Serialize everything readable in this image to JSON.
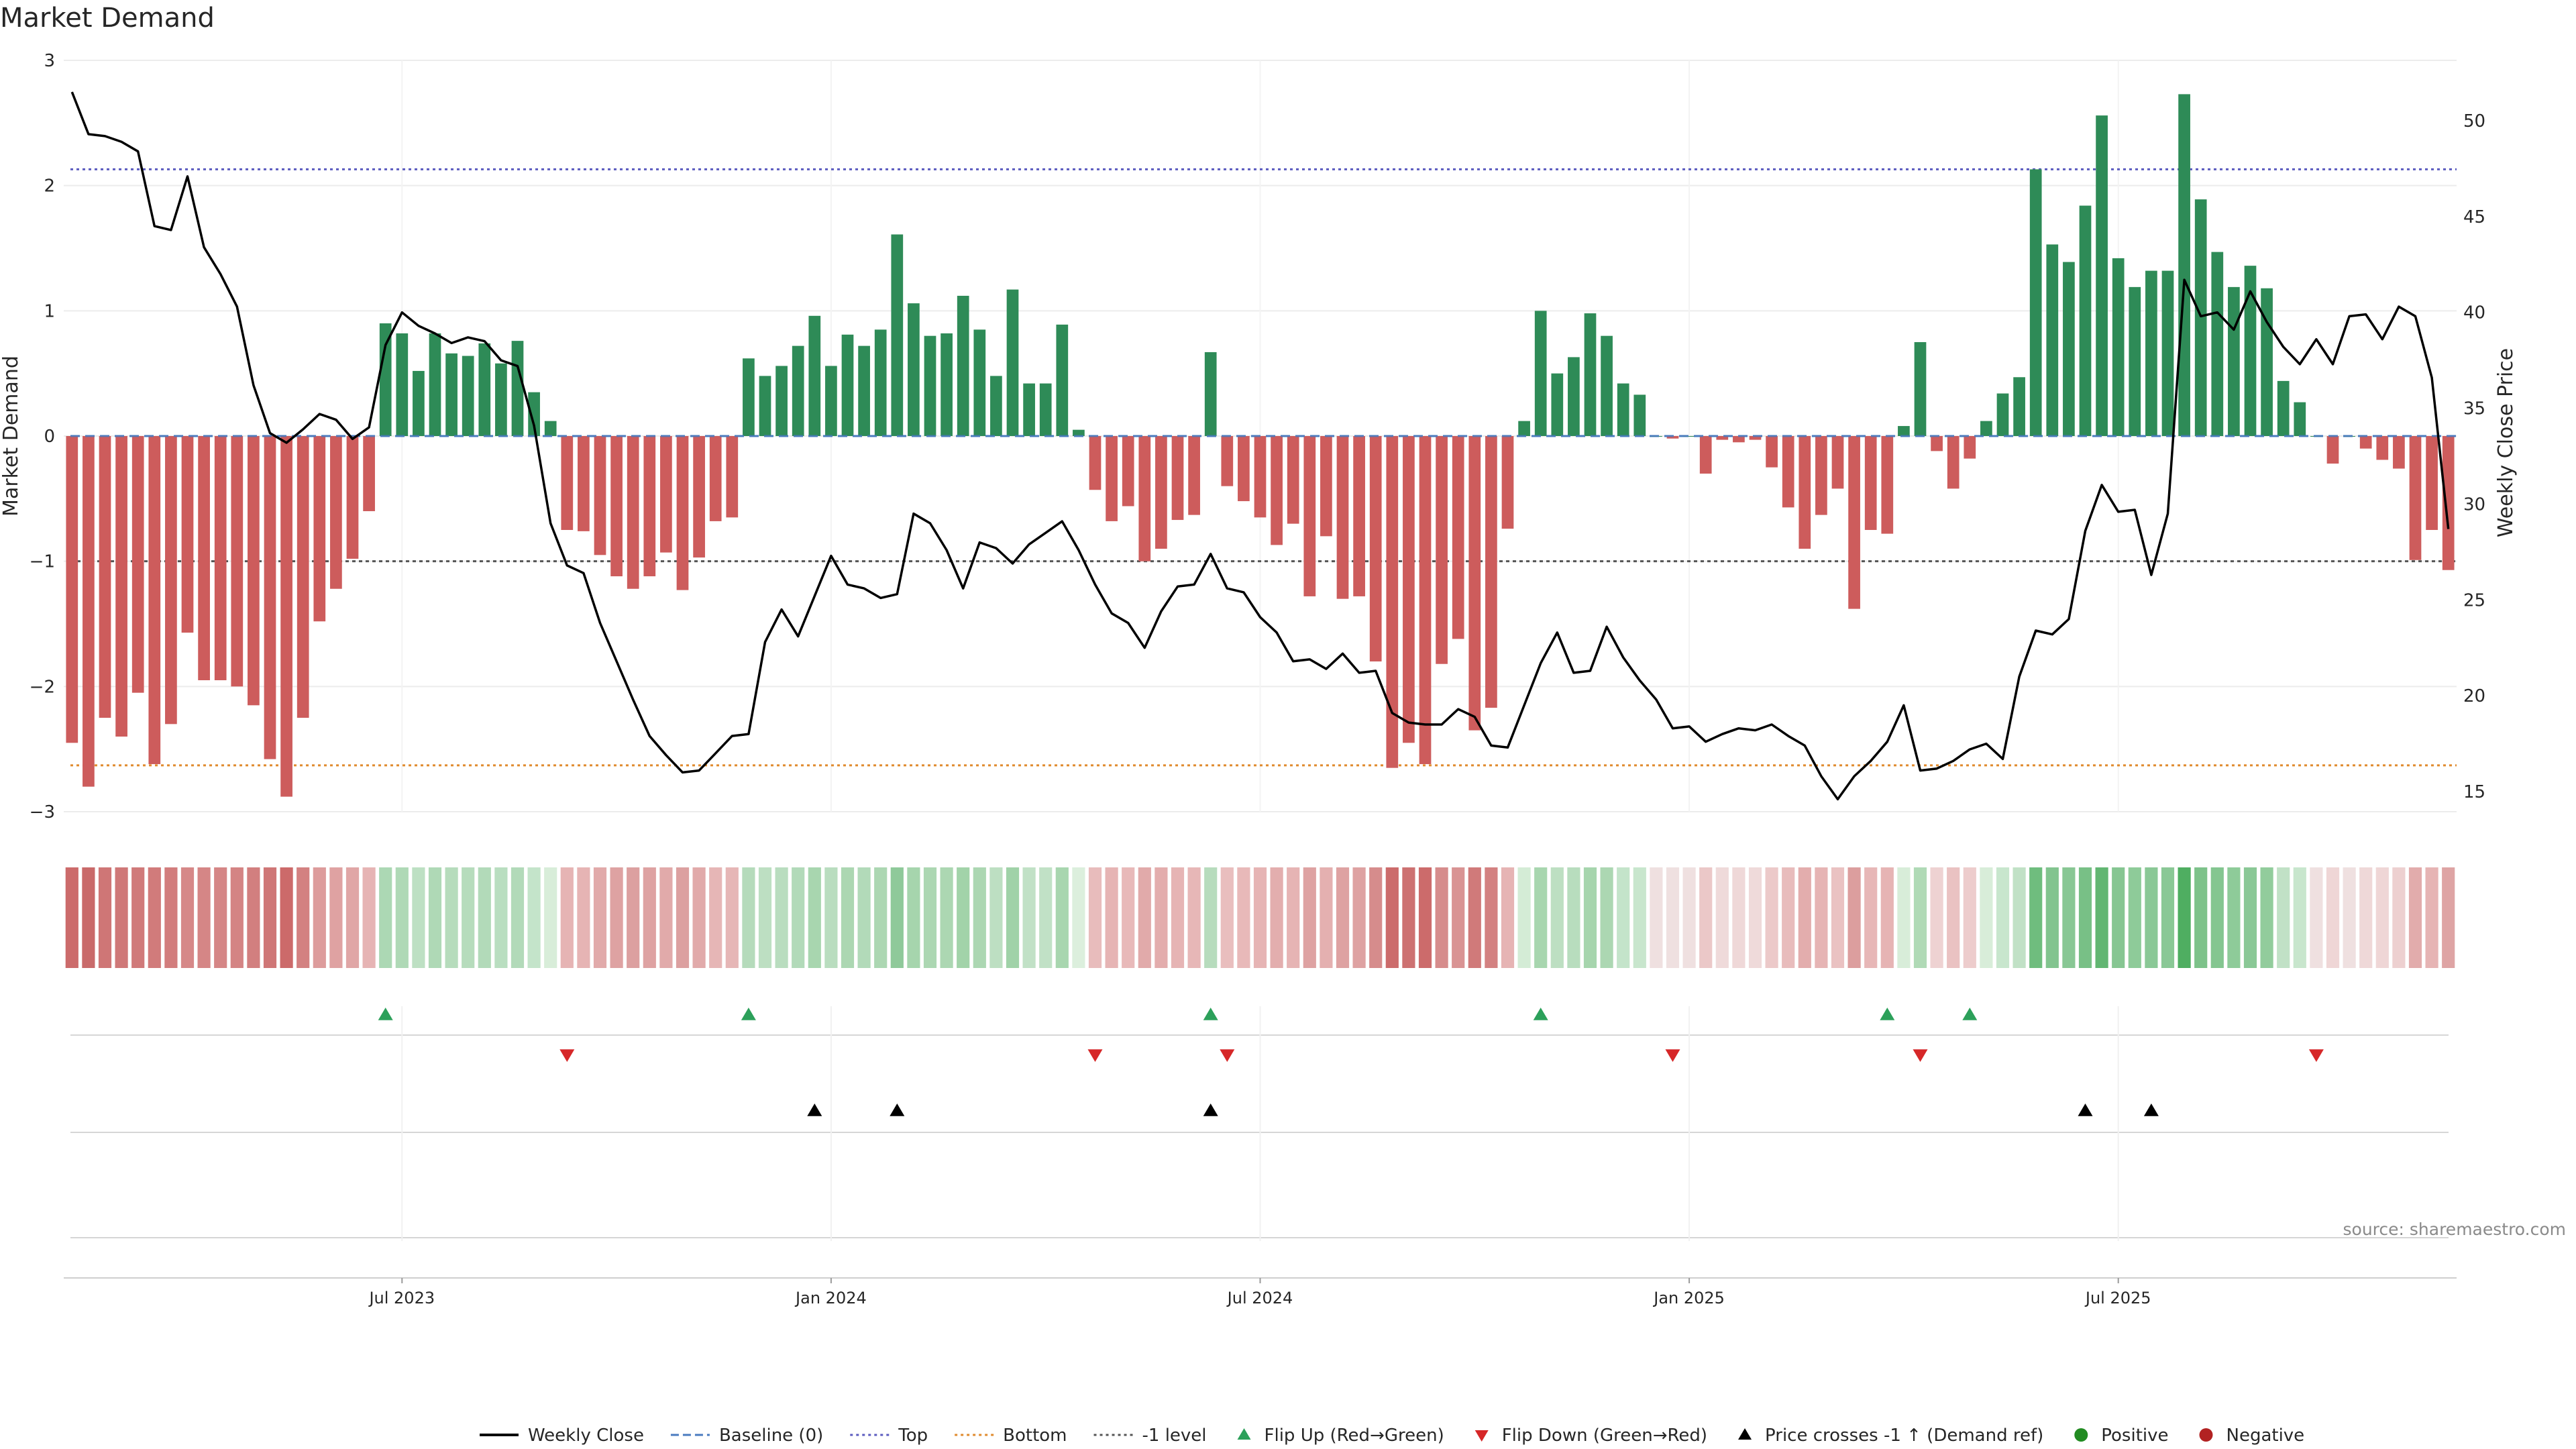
{
  "chart_data": {
    "type": "bar",
    "title": "Market Demand",
    "ylabel": "Market Demand",
    "y2label": "Weekly Close Price",
    "ylim": [
      -3,
      3
    ],
    "y2lim": [
      14,
      53
    ],
    "yticks": [
      3,
      2,
      1,
      0,
      -1,
      -2,
      -3
    ],
    "yticklabels": [
      "3",
      "2",
      "1",
      "0",
      "−1",
      "−2",
      "−3"
    ],
    "y2ticks": [
      50,
      45,
      40,
      35,
      30,
      25,
      20,
      15
    ],
    "y2ticklabels": [
      "50",
      "45",
      "40",
      "35",
      "30",
      "25",
      "20",
      "15"
    ],
    "xticks": [
      20,
      46,
      72,
      98,
      124
    ],
    "xticklabels": [
      "Jul 2023",
      "Jan 2024",
      "Jul 2024",
      "Jan 2025",
      "Jul 2025"
    ],
    "reference_lines": {
      "top": 2.13,
      "bottom": -2.63,
      "minus_one": -1,
      "baseline": 0
    },
    "series": [
      {
        "name": "Market Demand",
        "values": [
          -2.45,
          -2.8,
          -2.25,
          -2.4,
          -2.05,
          -2.62,
          -2.3,
          -1.57,
          -1.95,
          -1.95,
          -2.0,
          -2.15,
          -2.58,
          -2.88,
          -2.25,
          -1.48,
          -1.22,
          -0.98,
          -0.6,
          0.9,
          0.82,
          0.52,
          0.82,
          0.66,
          0.64,
          0.74,
          0.58,
          0.76,
          0.35,
          0.12,
          -0.75,
          -0.76,
          -0.95,
          -1.12,
          -1.22,
          -1.12,
          -0.93,
          -1.23,
          -0.97,
          -0.68,
          -0.65,
          0.62,
          0.48,
          0.56,
          0.72,
          0.96,
          0.56,
          0.81,
          0.72,
          0.85,
          1.61,
          1.06,
          0.8,
          0.82,
          1.12,
          0.85,
          0.48,
          1.17,
          0.42,
          0.42,
          0.89,
          0.05,
          -0.43,
          -0.68,
          -0.56,
          -1.0,
          -0.9,
          -0.67,
          -0.63,
          0.67,
          -0.4,
          -0.52,
          -0.65,
          -0.87,
          -0.7,
          -1.28,
          -0.8,
          -1.3,
          -1.28,
          -1.8,
          -2.65,
          -2.45,
          -2.62,
          -1.82,
          -1.62,
          -2.35,
          -2.17,
          -0.74,
          0.12,
          1.0,
          0.5,
          0.63,
          0.98,
          0.8,
          0.42,
          0.33,
          0.0,
          -0.02,
          0.0,
          -0.3,
          -0.03,
          -0.05,
          -0.03,
          -0.25,
          -0.57,
          -0.9,
          -0.63,
          -0.42,
          -1.38,
          -0.75,
          -0.78,
          0.08,
          0.75,
          -0.12,
          -0.42,
          -0.18,
          0.12,
          0.34,
          0.47,
          2.13,
          1.53,
          1.39,
          1.84,
          2.56,
          1.42,
          1.19,
          1.32,
          1.32,
          2.73,
          1.89,
          1.47,
          1.19,
          1.36,
          1.18,
          0.44,
          0.27,
          0.0,
          -0.22,
          0.0,
          -0.1,
          -0.19,
          -0.26,
          -0.99,
          -0.75,
          -1.07
        ]
      },
      {
        "name": "Weekly Close",
        "values": [
          51.5,
          49.3,
          49.2,
          48.9,
          48.4,
          44.5,
          44.3,
          47.1,
          43.4,
          42.0,
          40.3,
          36.2,
          33.7,
          33.2,
          33.9,
          34.7,
          34.4,
          33.4,
          34.0,
          38.3,
          40.0,
          39.3,
          38.9,
          38.4,
          38.7,
          38.5,
          37.5,
          37.2,
          34.1,
          29.0,
          26.8,
          26.4,
          23.8,
          21.8,
          19.8,
          17.9,
          16.9,
          16.0,
          16.1,
          17.0,
          17.9,
          18.0,
          22.8,
          24.5,
          23.1,
          25.2,
          27.3,
          25.8,
          25.6,
          25.1,
          25.3,
          29.5,
          29.0,
          27.6,
          25.6,
          28.0,
          27.7,
          26.9,
          27.9,
          28.5,
          29.1,
          27.6,
          25.8,
          24.3,
          23.8,
          22.5,
          24.4,
          25.7,
          25.8,
          27.4,
          25.6,
          25.4,
          24.1,
          23.3,
          21.8,
          21.9,
          21.4,
          22.2,
          21.2,
          21.3,
          19.1,
          18.6,
          18.5,
          18.5,
          19.3,
          18.9,
          17.4,
          17.3,
          19.5,
          21.7,
          23.3,
          21.2,
          21.3,
          23.6,
          22.0,
          20.8,
          19.8,
          18.3,
          18.4,
          17.6,
          18.0,
          18.3,
          18.2,
          18.5,
          17.9,
          17.4,
          15.8,
          14.6,
          15.8,
          16.6,
          17.6,
          19.5,
          16.1,
          16.2,
          16.6,
          17.2,
          17.5,
          16.7,
          21.0,
          23.4,
          23.2,
          24.0,
          28.6,
          31.0,
          29.6,
          29.7,
          26.3,
          29.5,
          41.7,
          39.8,
          40.0,
          39.1,
          41.1,
          39.5,
          38.2,
          37.3,
          38.6,
          37.3,
          39.8,
          39.9,
          38.6,
          40.3,
          39.8,
          36.6,
          28.7
        ]
      }
    ],
    "heat_strip": {
      "colors": [
        "#cc6b6b",
        "#c96a6a",
        "#cf7676",
        "#cf7878",
        "#d07a7a",
        "#d17b7b",
        "#d27d7d",
        "#d68888",
        "#d58686",
        "#d58686",
        "#d48484",
        "#d27f7f",
        "#cf7676",
        "#cc6a6a",
        "#d38181",
        "#dd9c9c",
        "#dfa2a2",
        "#e0a6a6",
        "#e6b4b4",
        "#acd8b4",
        "#afd9b6",
        "#bde0c3",
        "#afd9b6",
        "#b6dcbc",
        "#b6dcbc",
        "#b2dab9",
        "#b9dec0",
        "#b2dab9",
        "#c4e4ca",
        "#d8edd9",
        "#e6b4b4",
        "#e6b4b4",
        "#e1aaaa",
        "#dea2a2",
        "#dca0a0",
        "#dea2a2",
        "#e1aaaa",
        "#dca0a0",
        "#e1aaaa",
        "#e6b6b6",
        "#e6b6b6",
        "#b5dbbb",
        "#bddfc2",
        "#b9ddbf",
        "#b2dab9",
        "#a8d6af",
        "#b9ddbf",
        "#acd7b2",
        "#b2dab9",
        "#acd7b2",
        "#8fc99a",
        "#a6d5ad",
        "#acd7b2",
        "#acd7b2",
        "#a2d3a9",
        "#acd7b2",
        "#bddfc2",
        "#a0d2a8",
        "#c1e1c6",
        "#c1e1c6",
        "#a8d6af",
        "#dcefdd",
        "#e8bcbc",
        "#e6b4b4",
        "#e8b9b9",
        "#e1aaaa",
        "#e3adad",
        "#e6b4b4",
        "#e7b7b7",
        "#b7dcbd",
        "#e9bebe",
        "#e8b9b9",
        "#e6b4b4",
        "#e3aeae",
        "#e6b4b4",
        "#dea2a2",
        "#e4b0b0",
        "#dea2a2",
        "#dea2a2",
        "#d68c8c",
        "#cc6b6b",
        "#cd7171",
        "#cc6b6b",
        "#d68c8c",
        "#d99494",
        "#d07a7a",
        "#d38181",
        "#e6b4b4",
        "#d4ecd6",
        "#a8d6af",
        "#bddfc2",
        "#b8ddbe",
        "#a6d5ad",
        "#acd7b2",
        "#c4e4ca",
        "#c8e6cd",
        "#efe0e0",
        "#efe0e0",
        "#efe0e0",
        "#ebc8c8",
        "#efdada",
        "#efd8d8",
        "#efdada",
        "#ecc9c9",
        "#e8bcbc",
        "#e3adad",
        "#e6b4b4",
        "#eac2c2",
        "#dc9e9e",
        "#e7b7b7",
        "#e6b4b4",
        "#d8edd9",
        "#b0dab6",
        "#eed2d2",
        "#eac2c2",
        "#edcccc",
        "#d8edd9",
        "#c8e6cd",
        "#c1e1c6",
        "#6fbd7e",
        "#82c48f",
        "#88c794",
        "#78c086",
        "#62b672",
        "#86c692",
        "#8ecb99",
        "#8ac896",
        "#8ac896",
        "#4fae61",
        "#7dc28a",
        "#84c690",
        "#8ecb99",
        "#8ac896",
        "#92cc9c",
        "#c1e1c6",
        "#c8e6cd",
        "#efe0e0",
        "#efd6d6",
        "#efe0e0",
        "#efd8d8",
        "#efd6d6",
        "#edd0d0",
        "#e2acac",
        "#e6b4b4",
        "#dea4a4"
      ]
    },
    "flip_up_weeks": [
      19,
      41,
      69,
      89,
      110,
      115
    ],
    "flip_down_weeks": [
      30,
      62,
      70,
      97,
      112,
      136
    ],
    "price_cross_weeks": [
      45,
      50,
      69,
      122,
      126
    ],
    "source": "source: sharemaestro.com",
    "legend": {
      "placement": "bottom",
      "items": [
        {
          "key": "weekly-close",
          "label": "Weekly Close",
          "color": "#000000"
        },
        {
          "key": "baseline",
          "label": "Baseline (0)",
          "color": "#4a7bbf"
        },
        {
          "key": "top",
          "label": "Top",
          "color": "#5b5bbf"
        },
        {
          "key": "bottom",
          "label": "Bottom",
          "color": "#e08b2e"
        },
        {
          "key": "minus-one",
          "label": "-1 level",
          "color": "#555555"
        },
        {
          "key": "flip-up",
          "label": "Flip Up (Red→Green)",
          "color": "#2ca05a"
        },
        {
          "key": "flip-down",
          "label": "Flip Down (Green→Red)",
          "color": "#d62728"
        },
        {
          "key": "price-cross",
          "label": "Price crosses -1 ↑ (Demand ref)",
          "color": "#000000"
        },
        {
          "key": "positive",
          "label": "Positive",
          "color": "#228b22"
        },
        {
          "key": "negative",
          "label": "Negative",
          "color": "#b22222"
        }
      ]
    },
    "colors": {
      "positive_bar": "#2e8b57",
      "negative_bar": "#cd5c5c",
      "grid": "#ececec",
      "axis_text": "#262626"
    }
  }
}
